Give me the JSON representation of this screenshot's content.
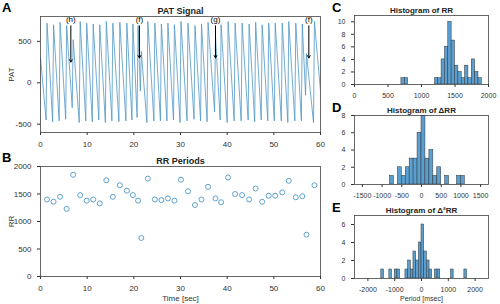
{
  "chart_data": [
    {
      "type": "line",
      "panel": "A",
      "title": "PAT Signal",
      "ylabel": "PAT",
      "color": "#4f97c7",
      "x": [
        0.0,
        1.2,
        1.4,
        2.6,
        2.8,
        4.0,
        4.2,
        5.4,
        5.6,
        6.8,
        7.0,
        8.3,
        8.5,
        9.7,
        9.9,
        11.1,
        11.3,
        12.5,
        12.7,
        13.9,
        14.1,
        15.3,
        15.5,
        16.8,
        17.0,
        18.3,
        18.5,
        19.6,
        19.8,
        20.7,
        20.9,
        21.4,
        21.6,
        22.8,
        23.0,
        24.3,
        24.5,
        25.7,
        25.9,
        27.1,
        27.3,
        28.5,
        28.7,
        29.9,
        30.1,
        31.4,
        31.6,
        32.9,
        33.1,
        34.3,
        34.5,
        35.7,
        35.9,
        37.3,
        37.5,
        38.5,
        38.7,
        40.0,
        40.2,
        41.5,
        41.7,
        43.0,
        43.2,
        44.5,
        44.7,
        45.9,
        46.1,
        47.3,
        47.5,
        48.7,
        48.9,
        50.1,
        50.3,
        51.6,
        51.8,
        53.0,
        53.2,
        54.5,
        54.7,
        55.9,
        56.1,
        56.8,
        57.0,
        58.5,
        58.7,
        60.0
      ],
      "values": [
        300,
        -450,
        720,
        -470,
        700,
        -460,
        730,
        -440,
        690,
        -300,
        520,
        -480,
        740,
        -460,
        720,
        -470,
        710,
        -450,
        700,
        -480,
        740,
        -460,
        720,
        -470,
        730,
        -460,
        720,
        -450,
        710,
        -420,
        690,
        -100,
        380,
        -480,
        740,
        -460,
        720,
        -460,
        710,
        -460,
        720,
        -450,
        700,
        -480,
        740,
        -460,
        720,
        -440,
        690,
        -460,
        710,
        -470,
        730,
        -350,
        560,
        -450,
        700,
        -480,
        740,
        -460,
        720,
        -460,
        720,
        -450,
        710,
        -470,
        730,
        -450,
        700,
        -460,
        720,
        -460,
        720,
        -460,
        720,
        -480,
        740,
        -460,
        720,
        -460,
        710,
        -150,
        350,
        -480,
        740,
        -100
      ],
      "xlim": [
        0,
        60
      ],
      "xticks": [
        0,
        10,
        20,
        30,
        40,
        50,
        60
      ],
      "ylim": [
        -600,
        800
      ],
      "yticks": [
        -500,
        0,
        500
      ],
      "annotations": [
        {
          "text": "(h)",
          "x": 6.5,
          "y": 760,
          "arrow_y": 250
        },
        {
          "text": "(f)",
          "x": 21.2,
          "y": 760,
          "arrow_y": 300
        },
        {
          "text": "(g)",
          "x": 37.5,
          "y": 760,
          "arrow_y": 300
        },
        {
          "text": "(f)",
          "x": 57.5,
          "y": 760,
          "arrow_y": 300
        }
      ]
    },
    {
      "type": "scatter",
      "panel": "B",
      "title": "RR Periods",
      "ylabel": "RR",
      "xlabel": "Time [sec]",
      "color": "#4f97c7",
      "marker": "open",
      "x": [
        1.4,
        2.8,
        4.2,
        5.6,
        7.0,
        8.5,
        9.9,
        11.3,
        12.7,
        14.1,
        15.5,
        17.0,
        18.5,
        19.8,
        20.9,
        21.6,
        23.0,
        24.5,
        25.9,
        27.3,
        28.7,
        30.1,
        31.6,
        33.1,
        34.5,
        35.9,
        37.5,
        38.7,
        40.2,
        41.7,
        43.2,
        44.7,
        46.1,
        47.5,
        48.9,
        50.3,
        51.8,
        53.2,
        54.7,
        56.1,
        57.0,
        58.7
      ],
      "values": [
        1400,
        1360,
        1450,
        1230,
        1850,
        1480,
        1380,
        1400,
        1330,
        1750,
        1450,
        1660,
        1560,
        1480,
        1380,
        700,
        1780,
        1400,
        1390,
        1420,
        1380,
        1760,
        1550,
        1300,
        1400,
        1630,
        1420,
        1350,
        1800,
        1500,
        1480,
        1400,
        1600,
        1360,
        1470,
        1470,
        1530,
        1740,
        1440,
        1460,
        760,
        1660
      ],
      "xlim": [
        0,
        60
      ],
      "xticks": [
        0,
        10,
        20,
        30,
        40,
        50,
        60
      ],
      "ylim": [
        0,
        2000
      ],
      "yticks": [
        0,
        500,
        1000,
        1500,
        2000
      ]
    },
    {
      "type": "histogram",
      "panel": "C",
      "title": "Histogram of RR",
      "color": "#5a9fd0",
      "bins": [
        700,
        750,
        800,
        850,
        900,
        950,
        1000,
        1050,
        1100,
        1150,
        1200,
        1250,
        1300,
        1350,
        1400,
        1450,
        1500,
        1550,
        1600,
        1650,
        1700,
        1750,
        1800,
        1850,
        1900
      ],
      "values": [
        1,
        1,
        0,
        0,
        0,
        0,
        0,
        0,
        0,
        0,
        1,
        1,
        4,
        6,
        10,
        7,
        3,
        2,
        1,
        3,
        1,
        4,
        2,
        1
      ],
      "xlim": [
        0,
        2000
      ],
      "xticks": [
        0,
        500,
        1000,
        1500,
        2000
      ],
      "ylim": [
        0,
        11
      ],
      "yticks": [
        0,
        2,
        4,
        6,
        8,
        10
      ]
    },
    {
      "type": "histogram",
      "panel": "D",
      "title": "Histogram of ΔRR",
      "color": "#5a9fd0",
      "bins": [
        -800,
        -700,
        -600,
        -500,
        -400,
        -300,
        -200,
        -100,
        0,
        100,
        200,
        300,
        400,
        500,
        600,
        700,
        800,
        900,
        1000,
        1100,
        1200
      ],
      "values": [
        1,
        0,
        2,
        1,
        2,
        3,
        3,
        6,
        8,
        3,
        4,
        1,
        2,
        0,
        1,
        0,
        0,
        1,
        1,
        0
      ],
      "xlim": [
        -1700,
        1700
      ],
      "xticks": [
        -1500,
        -1000,
        -500,
        0,
        500,
        1000,
        1500
      ],
      "ylim": [
        0,
        8
      ],
      "yticks": [
        0,
        2,
        4,
        6,
        8
      ]
    },
    {
      "type": "histogram",
      "panel": "E",
      "title": "Histogram of Δ²RR",
      "xlabel": "Period [msec]",
      "color": "#5a9fd0",
      "bins": [
        -1500,
        -1400,
        -1300,
        -1200,
        -1100,
        -1000,
        -900,
        -800,
        -700,
        -600,
        -500,
        -400,
        -300,
        -200,
        -100,
        0,
        100,
        200,
        300,
        400,
        500,
        600,
        700,
        800,
        900,
        1000,
        1100,
        1200,
        1300,
        1400,
        1500,
        1600,
        1700
      ],
      "values": [
        1,
        0,
        0,
        1,
        0,
        1,
        1,
        0,
        0,
        1,
        2,
        1,
        3,
        2,
        4,
        6,
        3,
        2,
        1,
        0,
        1,
        1,
        0,
        0,
        0,
        0,
        1,
        0,
        0,
        0,
        0,
        1
      ],
      "xlim": [
        -2500,
        2500
      ],
      "xticks": [
        -2000,
        -1000,
        0,
        1000,
        2000
      ],
      "ylim": [
        0,
        7
      ],
      "yticks": [
        0,
        2,
        4,
        6
      ]
    }
  ]
}
